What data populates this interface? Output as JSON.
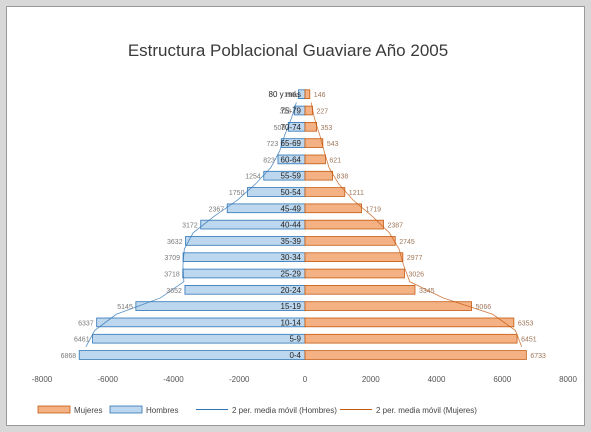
{
  "chart_data": {
    "type": "bar",
    "orientation": "horizontal",
    "title": "Estructura Poblacional  Guaviare Año 2005",
    "categories": [
      "0-4",
      "5-9",
      "10-14",
      "15-19",
      "20-24",
      "25-29",
      "30-34",
      "35-39",
      "40-44",
      "45-49",
      "50-54",
      "55-59",
      "60-64",
      "65-69",
      "70-74",
      "75-79",
      "80 y más"
    ],
    "series": [
      {
        "name": "Mujeres",
        "color": "#f4b183",
        "stroke": "#c55a11",
        "values": [
          6733,
          6451,
          6353,
          5066,
          3345,
          3026,
          2977,
          2745,
          2387,
          1719,
          1211,
          838,
          621,
          543,
          353,
          227,
          146
        ]
      },
      {
        "name": "Hombres",
        "color": "#bdd7ee",
        "stroke": "#2e75b6",
        "values": [
          -6868,
          -6461,
          -6337,
          -5145,
          -3652,
          -3718,
          -3709,
          -3632,
          -3172,
          -2367,
          -1750,
          -1254,
          -823,
          -723,
          -508,
          -328,
          -196
        ]
      }
    ],
    "data_labels": {
      "Hombres": [
        "6868",
        "6461",
        "6337",
        "5145",
        "3652",
        "3718",
        "3709",
        "3632",
        "3172",
        "2367",
        "1750",
        "1254",
        "823",
        "723",
        "508",
        "328",
        "196"
      ],
      "Mujeres": [
        "6733",
        "6451",
        "6353",
        "5066",
        "3345",
        "3026",
        "2977",
        "2745",
        "2387",
        "1719",
        "1211",
        "838",
        "621",
        "543",
        "353",
        "227",
        "146"
      ]
    },
    "xlim": [
      -8000,
      8000
    ],
    "xticks": [
      "-8000",
      "-6000",
      "-4000",
      "-2000",
      "0",
      "2000",
      "4000",
      "6000",
      "8000"
    ],
    "legend": {
      "position": "bottom",
      "items": [
        {
          "label": "Mujeres",
          "kind": "bar",
          "color": "#f4b183",
          "stroke": "#c55a11"
        },
        {
          "label": "Hombres",
          "kind": "bar",
          "color": "#bdd7ee",
          "stroke": "#2e75b6"
        },
        {
          "label": "2 per. media móvil (Hombres)",
          "kind": "line",
          "color": "#2e75b6"
        },
        {
          "label": "2 per. media móvil (Mujeres)",
          "kind": "line",
          "color": "#c55a11"
        }
      ]
    },
    "grid": false
  }
}
